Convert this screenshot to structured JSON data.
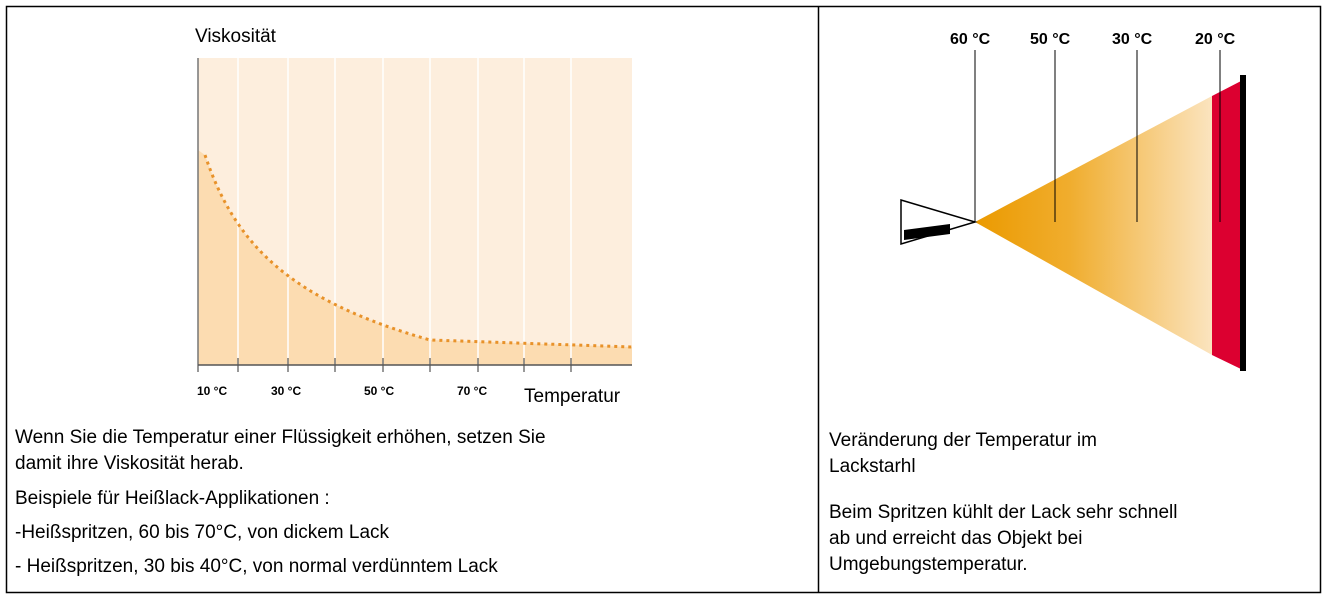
{
  "left": {
    "chart": {
      "y_label": "Viskosität",
      "x_label": "Temperatur",
      "x_ticks": [
        "10 °C",
        "30 °C",
        "50 °C",
        "70 °C"
      ]
    },
    "paragraphs": [
      "Wenn Sie die Temperatur einer Flüssigkeit erhöhen, setzen Sie",
      "damit ihre Viskosität herab.",
      "Beispiele für Heißlack-Applikationen :",
      "-Heißspritzen, 60 bis 70°C, von dickem Lack",
      "- Heißspritzen, 30 bis 40°C, von normal verdünntem Lack"
    ]
  },
  "right": {
    "diagram": {
      "temperatures": [
        "60 °C",
        "50 °C",
        "30 °C",
        "20 °C"
      ]
    },
    "paragraphs": [
      "Veränderung der Temperatur im",
      "Lackstarhl",
      "Beim Spritzen kühlt der Lack sehr schnell",
      "ab und erreicht das Objekt bei",
      "Umgebungstemperatur."
    ]
  }
}
